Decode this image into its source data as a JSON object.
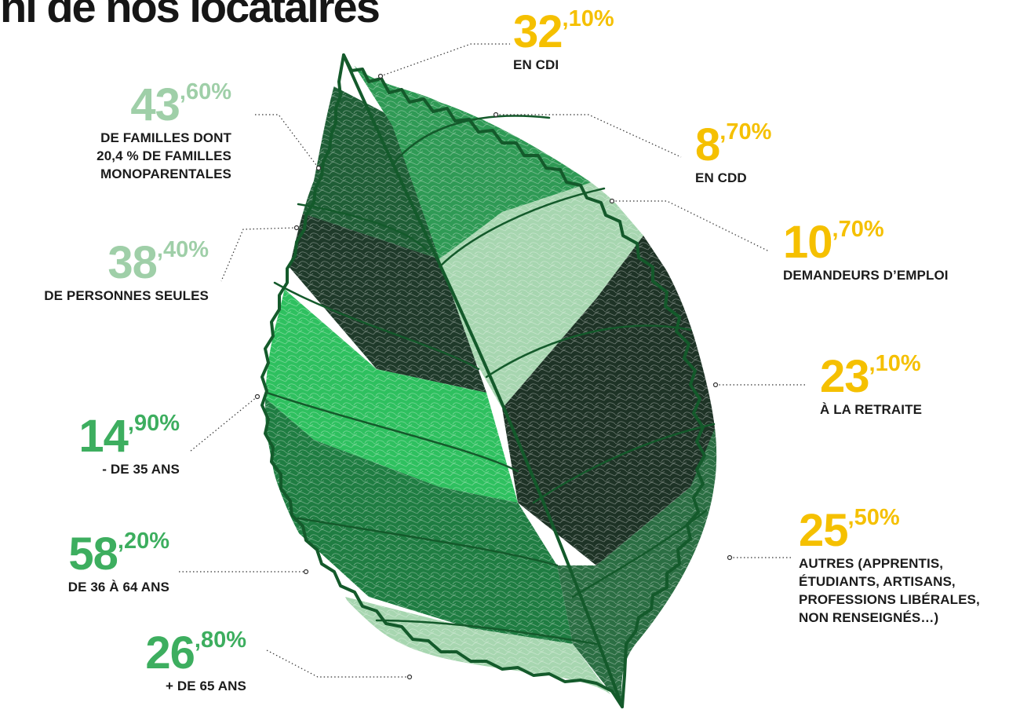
{
  "title": "ni de nos locataires",
  "colors": {
    "yellow": "#f5c000",
    "green_light": "#9fcfa8",
    "green_mid": "#2fb057",
    "green_mid2": "#3dae5f",
    "leaf_outline": "#145a2b",
    "leaf_dark": "#1f3a2a",
    "leaf_green_a": "#2f9a55",
    "leaf_green_b": "#2ec05f",
    "leaf_green_c": "#1f7d42",
    "leaf_pale": "#a7d6b0",
    "leaf_forest": "#2b6e43"
  },
  "stats_left": [
    {
      "id": "familles",
      "int": "43",
      "dec": ",60%",
      "color": "#9fcfa8",
      "lines": [
        "DE FAMILLES DONT",
        "20,4 % DE FAMILLES",
        "MONOPARENTALES"
      ]
    },
    {
      "id": "seules",
      "int": "38",
      "dec": ",40%",
      "color": "#9fcfa8",
      "lines": [
        "DE PERSONNES SEULES"
      ]
    },
    {
      "id": "moins35",
      "int": "14",
      "dec": ",90%",
      "color": "#3dae5f",
      "lines": [
        "- DE 35 ANS"
      ]
    },
    {
      "id": "36a64",
      "int": "58",
      "dec": ",20%",
      "color": "#3dae5f",
      "lines": [
        "DE 36 À 64 ANS"
      ]
    },
    {
      "id": "plus65",
      "int": "26",
      "dec": ",80%",
      "color": "#3dae5f",
      "lines": [
        "+ DE 65 ANS"
      ]
    }
  ],
  "stats_right": [
    {
      "id": "cdi",
      "int": "32",
      "dec": ",10%",
      "color": "#f5c000",
      "lines": [
        "EN CDI"
      ]
    },
    {
      "id": "cdd",
      "int": "8",
      "dec": ",70%",
      "color": "#f5c000",
      "lines": [
        "EN CDD"
      ]
    },
    {
      "id": "emploi",
      "int": "10",
      "dec": ",70%",
      "color": "#f5c000",
      "lines": [
        "DEMANDEURS D’EMPLOI"
      ]
    },
    {
      "id": "retraite",
      "int": "23",
      "dec": ",10%",
      "color": "#f5c000",
      "lines": [
        "À LA RETRAITE"
      ]
    },
    {
      "id": "autres",
      "int": "25",
      "dec": ",50%",
      "color": "#f5c000",
      "lines": [
        "AUTRES (APPRENTIS,",
        "ÉTUDIANTS, ARTISANS,",
        "PROFESSIONS LIBÉRALES,",
        "NON RENSEIGNÉS…)"
      ]
    }
  ]
}
